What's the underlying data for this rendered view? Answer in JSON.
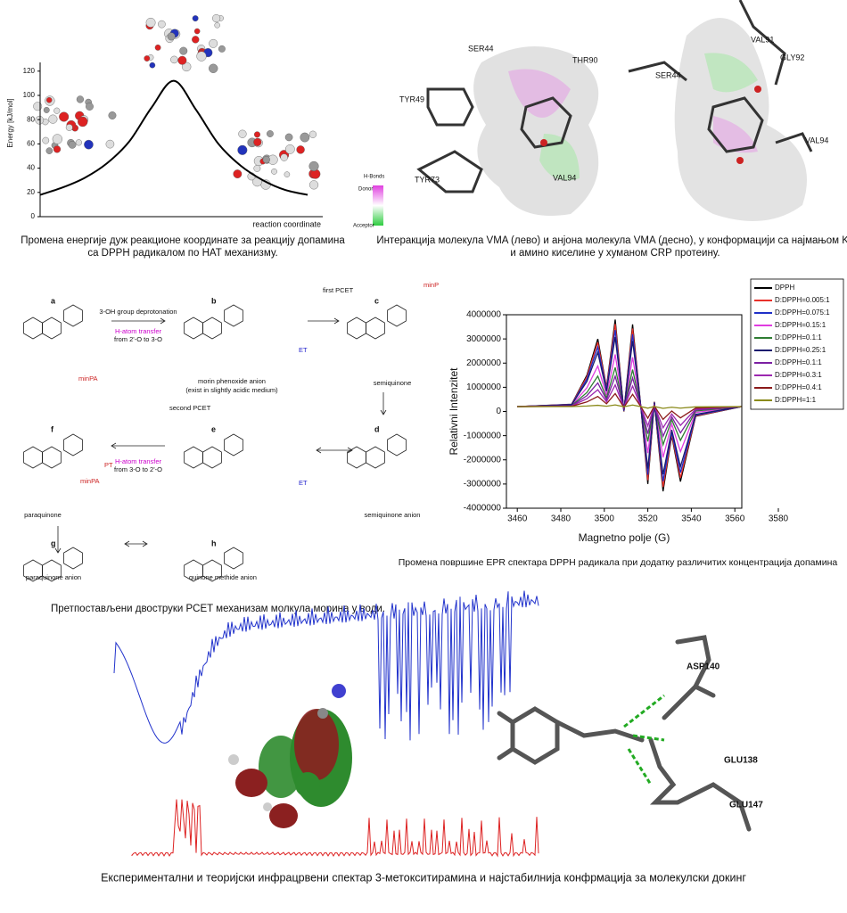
{
  "chart_data": [
    {
      "type": "line",
      "y_label": "Energy [kJ/mol]",
      "x_label": "reaction coordinate",
      "color": "#000000",
      "categories": [
        null,
        null,
        null,
        null,
        null,
        null,
        null,
        null,
        null,
        null,
        null,
        null,
        null
      ],
      "values": [
        18,
        24,
        32,
        44,
        62,
        90,
        112,
        88,
        60,
        42,
        30,
        22,
        18
      ],
      "ylim": [
        0,
        125
      ],
      "yticks": [
        0,
        20,
        40,
        60,
        80,
        100,
        120
      ]
    },
    {
      "type": "line",
      "y_label": "Relativni Intenzitet",
      "x_label": "Magnetno polje (G)",
      "legend": "upper right",
      "x": [
        3460,
        3485,
        3492,
        3497,
        3501,
        3505,
        3509,
        3513,
        3517,
        3520,
        3523,
        3527,
        3531,
        3535,
        3542,
        3563
      ],
      "xlim": [
        3455,
        3580
      ],
      "xticks": [
        3460,
        3480,
        3500,
        3520,
        3540,
        3560,
        3580
      ],
      "ylim": [
        -4000000,
        4000000
      ],
      "yticks": [
        -4000000,
        -3000000,
        -2000000,
        -1000000,
        0,
        1000000,
        2000000,
        3000000,
        4000000
      ],
      "series": [
        {
          "name": "DPPH",
          "color": "#000000",
          "values": [
            200000,
            300000,
            1500000,
            3000000,
            1000000,
            3800000,
            0,
            3600000,
            0,
            -3000000,
            400000,
            -3300000,
            -1000000,
            -2900000,
            -200000,
            200000
          ]
        },
        {
          "name": "D:DPPH=0.005:1",
          "color": "#e8312a",
          "values": [
            200000,
            295000,
            1435000,
            2860000,
            960000,
            3620000,
            10000,
            3430000,
            10000,
            -2840000,
            390000,
            -3125000,
            -940000,
            -2745000,
            -180000,
            200000
          ]
        },
        {
          "name": "D:DPPH=0.075:1",
          "color": "#1f2fc8",
          "values": [
            200000,
            288000,
            1344000,
            2664000,
            904000,
            3368000,
            24000,
            3192000,
            24000,
            -2616000,
            376000,
            -2880000,
            -856000,
            -2528000,
            -152000,
            200000
          ]
        },
        {
          "name": "D:DPPH=0.15:1",
          "color": "#e03ce0",
          "values": [
            200000,
            260000,
            980000,
            1880000,
            680000,
            2360000,
            80000,
            2240000,
            80000,
            -1720000,
            320000,
            -1900000,
            -520000,
            -1660000,
            -40000,
            200000
          ]
        },
        {
          "name": "D:DPPH=0.1:1",
          "color": "#2e7d32",
          "values": [
            200000,
            245000,
            785000,
            1460000,
            560000,
            1820000,
            110000,
            1730000,
            110000,
            -1240000,
            290000,
            -1375000,
            -340000,
            -1195000,
            20000,
            200000
          ]
        },
        {
          "name": "D:DPPH=0.25:1",
          "color": "#1a1a6e",
          "values": [
            200000,
            280000,
            1240000,
            2440000,
            840000,
            3080000,
            40000,
            2920000,
            40000,
            -2360000,
            360000,
            -2600000,
            -760000,
            -2280000,
            -120000,
            200000
          ]
        },
        {
          "name": "D:DPPH=0.1:1",
          "color": "#7b1fa2",
          "values": [
            200000,
            235000,
            655000,
            1180000,
            480000,
            1460000,
            130000,
            1390000,
            130000,
            -920000,
            270000,
            -1025000,
            -220000,
            -885000,
            60000,
            200000
          ]
        },
        {
          "name": "D:DPPH=0.3:1",
          "color": "#9c27b0",
          "values": [
            200000,
            225000,
            525000,
            900000,
            400000,
            1100000,
            150000,
            1050000,
            150000,
            -600000,
            250000,
            -675000,
            -100000,
            -575000,
            100000,
            200000
          ]
        },
        {
          "name": "D:DPPH=0.4:1",
          "color": "#8b1a1a",
          "values": [
            200000,
            215000,
            395000,
            620000,
            320000,
            740000,
            170000,
            710000,
            170000,
            -280000,
            230000,
            -325000,
            20000,
            -265000,
            140000,
            200000
          ]
        },
        {
          "name": "D:DPPH=1:1",
          "color": "#8a8a1a",
          "values": [
            200000,
            202000,
            226000,
            256000,
            216000,
            272000,
            196000,
            268000,
            196000,
            136000,
            204000,
            130000,
            176000,
            138000,
            192000,
            200000
          ]
        }
      ]
    }
  ],
  "figures": {
    "energy_caption": [
      "Промена енергије дуж реакционе координате за реакцију допамина",
      "са DPPH радикалом по HAT механизму."
    ],
    "docking_caption": [
      "Интеракција молекула VMA (лево) и анјона молекула VMA (десно), у конформацији са најмањом Ki,",
      "и амино киселине у хуманом CRP протеину."
    ],
    "docking_labels": [
      "SER44",
      "THR90",
      "TYR49",
      "TYR73",
      "VAL94",
      "VAL91",
      "GLY92",
      "SER44",
      "VAL94"
    ],
    "hbond_legend": [
      "H-Bonds",
      "Donor",
      "Acceptor"
    ],
    "scheme_letters": [
      "a",
      "b",
      "c",
      "d",
      "e",
      "f",
      "g",
      "h"
    ],
    "scheme_texts": [
      "3-OH group deprotonation",
      "H-atom transfer",
      "from 2'-O to 3-O",
      "morin phenoxide anion",
      "(exist in slightly acidic medium)",
      "first PCET",
      "semiquinone",
      "semiquinone anion",
      "second PCET",
      "H-atom transfer",
      "from 3-O to 2'-O",
      "paraquinone",
      "paraquinone anion",
      "quinone methide anion",
      "minPA",
      "minPA",
      "minP",
      "ET",
      "ET",
      "PT"
    ],
    "scheme_caption": "Претпостављени двоструки PCET механизам молкула морина у води.",
    "epr_caption": "Промена површине EPR спектара DPPH радикала при додатку различитих концентрација допамина",
    "ir_labels": [
      "ASP140",
      "GLU138",
      "GLU147"
    ],
    "ir_caption": "Експериментални и теоријски инфрацрвени спектар 3-метокситирамина и најстабилнија конфрмација за молекулски докинг"
  }
}
